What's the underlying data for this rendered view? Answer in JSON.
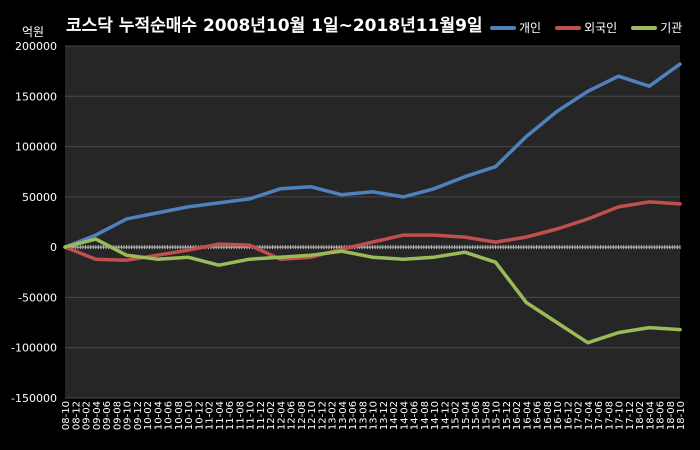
{
  "chart_data": {
    "type": "line",
    "title": "코스닥  누적순매수 2008년10월 1일~2018년11월9일",
    "ylabel": "억원",
    "ylim": [
      -150000,
      200000
    ],
    "yticks": [
      200000,
      150000,
      100000,
      50000,
      0,
      -50000,
      -100000,
      -150000
    ],
    "grid": true,
    "legend_position": "top-right",
    "x_tick_labels": [
      "08-10",
      "08-12",
      "09-02",
      "09-04",
      "09-06",
      "09-08",
      "09-10",
      "09-12",
      "10-02",
      "10-04",
      "10-06",
      "10-08",
      "10-10",
      "10-12",
      "11-02",
      "11-04",
      "11-06",
      "11-08",
      "11-10",
      "11-12",
      "12-02",
      "12-04",
      "12-06",
      "12-08",
      "12-10",
      "12-12",
      "13-02",
      "13-04",
      "13-06",
      "13-08",
      "13-10",
      "13-12",
      "14-02",
      "14-04",
      "14-06",
      "14-08",
      "14-10",
      "14-12",
      "15-02",
      "15-04",
      "15-06",
      "15-08",
      "15-10",
      "15-12",
      "16-02",
      "16-04",
      "16-06",
      "16-08",
      "16-10",
      "16-12",
      "17-02",
      "17-04",
      "17-06",
      "17-08",
      "17-10",
      "17-12",
      "18-02",
      "18-04",
      "18-06",
      "18-08",
      "18-10"
    ],
    "x": [
      "08-10",
      "09-04",
      "09-10",
      "10-04",
      "10-10",
      "11-04",
      "11-10",
      "12-04",
      "12-10",
      "13-04",
      "13-10",
      "14-04",
      "14-10",
      "15-04",
      "15-10",
      "16-04",
      "16-10",
      "17-04",
      "17-10",
      "18-04",
      "18-10"
    ],
    "series": [
      {
        "name": "개인",
        "color": "#4f81bd",
        "values": [
          0,
          12000,
          28000,
          34000,
          40000,
          44000,
          48000,
          58000,
          60000,
          52000,
          55000,
          50000,
          58000,
          70000,
          80000,
          110000,
          135000,
          155000,
          170000,
          160000,
          182000
        ]
      },
      {
        "name": "외국인",
        "color": "#c0504d",
        "values": [
          0,
          -12000,
          -13000,
          -8000,
          -3000,
          3000,
          2000,
          -12000,
          -10000,
          -2000,
          5000,
          12000,
          12000,
          10000,
          5000,
          10000,
          18000,
          28000,
          40000,
          45000,
          43000
        ]
      },
      {
        "name": "기관",
        "color": "#9bbb59",
        "values": [
          0,
          8000,
          -8000,
          -12000,
          -10000,
          -18000,
          -12000,
          -10000,
          -8000,
          -4000,
          -10000,
          -12000,
          -10000,
          -5000,
          -15000,
          -55000,
          -75000,
          -95000,
          -85000,
          -80000,
          -82000
        ]
      }
    ]
  }
}
